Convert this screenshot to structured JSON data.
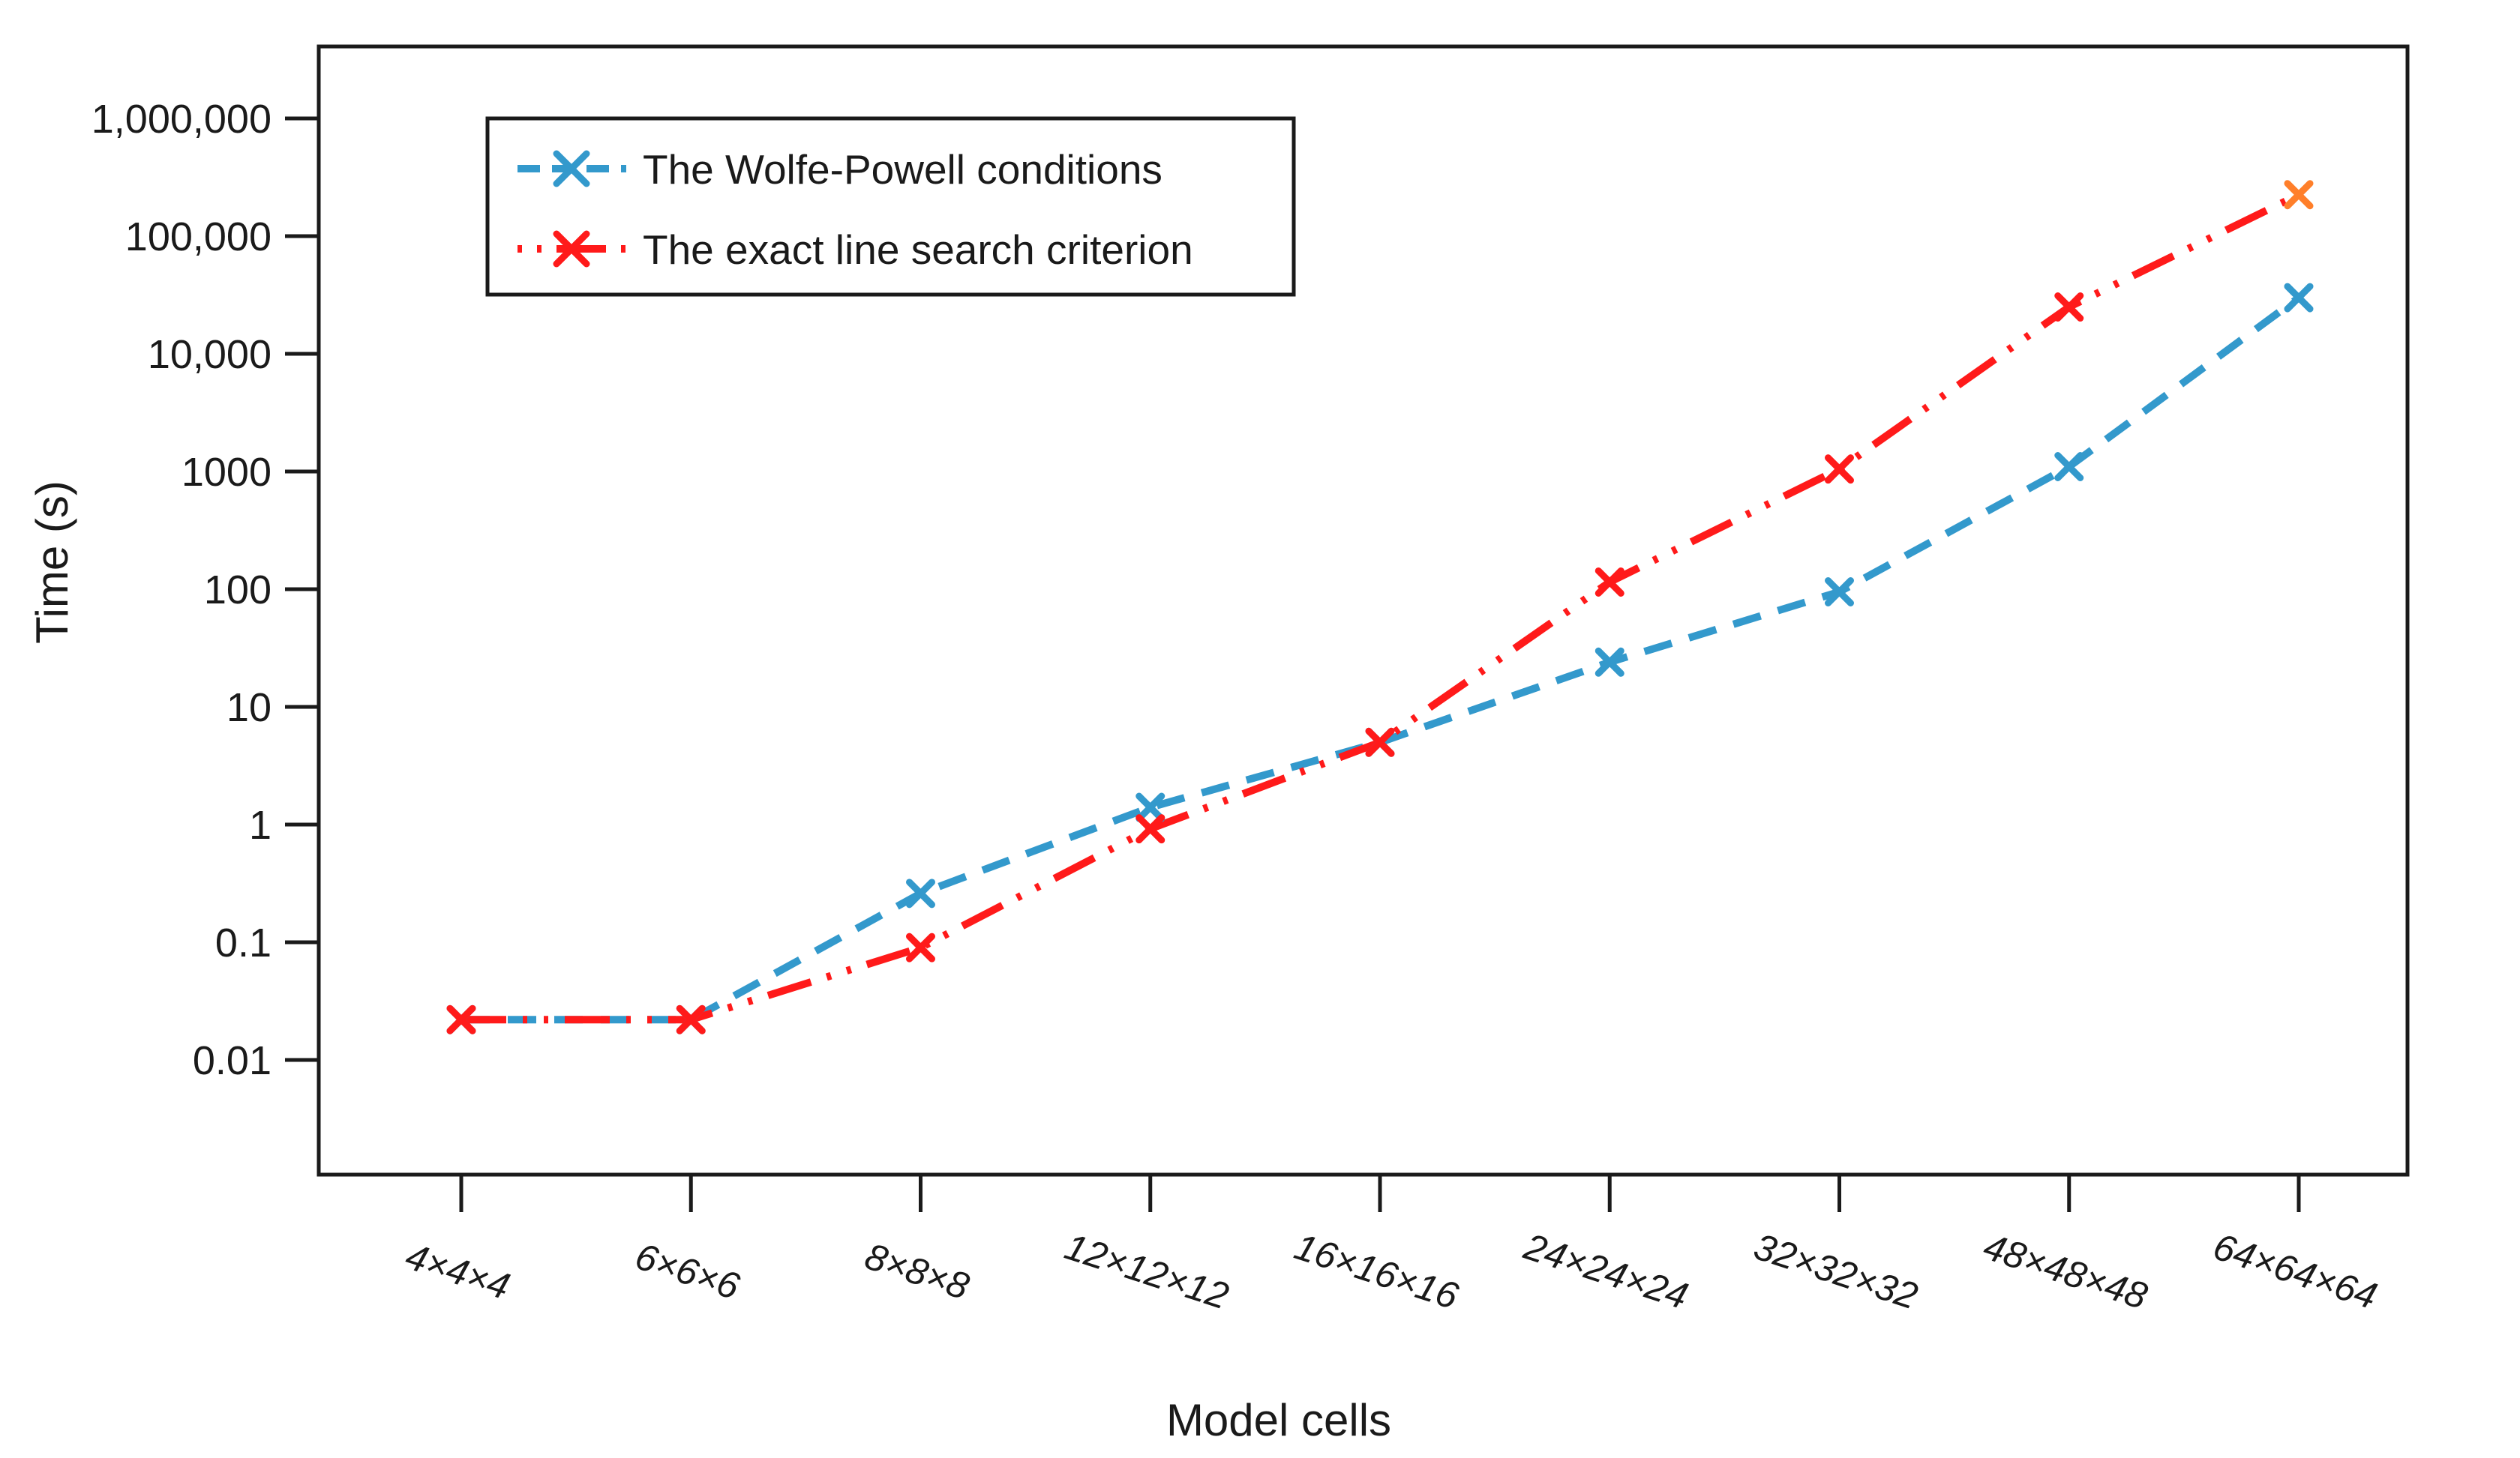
{
  "chart_data": {
    "type": "line",
    "title": "",
    "xlabel": "Model cells",
    "ylabel": "Time (s)",
    "yscale": "log",
    "ylim": [
      0.001,
      3000000
    ],
    "grid": false,
    "legend_position": "top-left",
    "categories": [
      "4×4×4",
      "6×6×6",
      "8×8×8",
      "12×12×12",
      "16×16×16",
      "24×24×24",
      "32×32×32",
      "48×48×48",
      "64×64×64"
    ],
    "y_ticks": [
      {
        "value": 0.01,
        "label": "0.01"
      },
      {
        "value": 0.1,
        "label": "0.1"
      },
      {
        "value": 1,
        "label": "1"
      },
      {
        "value": 10,
        "label": "10"
      },
      {
        "value": 100,
        "label": "100"
      },
      {
        "value": 1000,
        "label": "1000"
      },
      {
        "value": 10000,
        "label": "10,000"
      },
      {
        "value": 100000,
        "label": "100,000"
      },
      {
        "value": 1000000,
        "label": "1,000,000"
      }
    ],
    "series": [
      {
        "name": "The Wolfe-Powell conditions",
        "color": "#3399cc",
        "line_style": "dashed",
        "values": [
          0.022,
          0.022,
          0.26,
          1.4,
          5,
          24,
          95,
          1100,
          30000
        ]
      },
      {
        "name": "The exact line search criterion",
        "color": "#ff1a1a",
        "line_style": "dash-dot",
        "values": [
          0.022,
          0.022,
          0.09,
          0.92,
          5,
          115,
          1050,
          25000,
          225000
        ],
        "last_marker_color": "#ff7f2a"
      }
    ]
  }
}
